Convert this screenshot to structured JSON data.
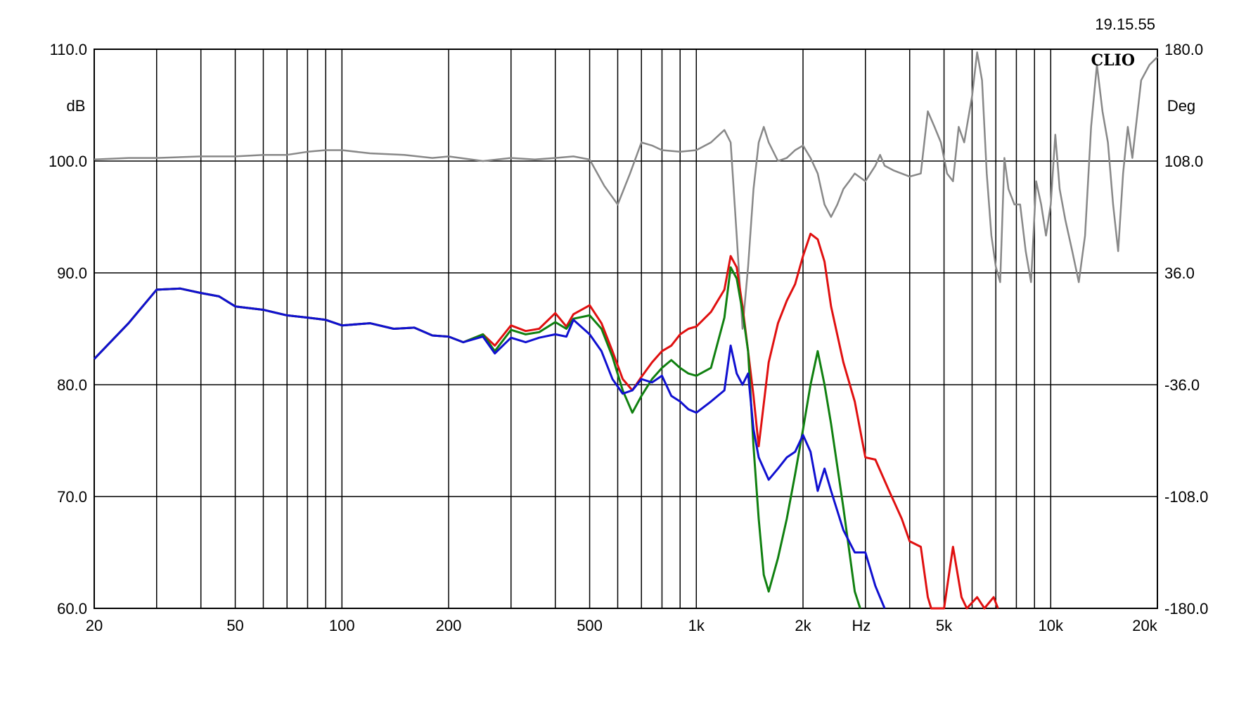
{
  "timestamp": "19.15.55",
  "logo": "CLIO",
  "colors": {
    "red": "#e01010",
    "green": "#108010",
    "blue": "#1010d0",
    "phase": "#888888",
    "grid": "#000000"
  },
  "chart_data": {
    "type": "line",
    "xscale": "log",
    "xlim": [
      20,
      20000
    ],
    "ylim": [
      60,
      110
    ],
    "y2lim": [
      -180,
      180
    ],
    "grid": true,
    "ylabel": "dB",
    "y2label": "Deg",
    "xlabel": "Hz",
    "x_ticks": [
      {
        "v": 20,
        "label": "20"
      },
      {
        "v": 50,
        "label": "50"
      },
      {
        "v": 100,
        "label": "100"
      },
      {
        "v": 200,
        "label": "200"
      },
      {
        "v": 500,
        "label": "500"
      },
      {
        "v": 1000,
        "label": "1k"
      },
      {
        "v": 2000,
        "label": "2k"
      },
      {
        "v": 5000,
        "label": "5k"
      },
      {
        "v": 10000,
        "label": "10k"
      },
      {
        "v": 20000,
        "label": "20k"
      }
    ],
    "y_ticks": [
      "60.0",
      "70.0",
      "80.0",
      "90.0",
      "100.0",
      "110.0"
    ],
    "y2_ticks": [
      "-180.0",
      "-108.0",
      "-36.0",
      "36.0",
      "108.0",
      "180.0"
    ],
    "series": [
      {
        "color": "#888888",
        "axis": "right",
        "points": [
          [
            20,
            109
          ],
          [
            25,
            110
          ],
          [
            30,
            110
          ],
          [
            40,
            111
          ],
          [
            50,
            111
          ],
          [
            60,
            112
          ],
          [
            70,
            112
          ],
          [
            80,
            114
          ],
          [
            90,
            115
          ],
          [
            100,
            115
          ],
          [
            120,
            113
          ],
          [
            150,
            112
          ],
          [
            180,
            110
          ],
          [
            200,
            111
          ],
          [
            250,
            108
          ],
          [
            300,
            110
          ],
          [
            350,
            109
          ],
          [
            400,
            110
          ],
          [
            450,
            111
          ],
          [
            500,
            109
          ],
          [
            550,
            92
          ],
          [
            600,
            80
          ],
          [
            650,
            100
          ],
          [
            700,
            120
          ],
          [
            750,
            118
          ],
          [
            800,
            115
          ],
          [
            900,
            114
          ],
          [
            1000,
            115
          ],
          [
            1100,
            120
          ],
          [
            1200,
            128
          ],
          [
            1250,
            120
          ],
          [
            1300,
            60
          ],
          [
            1350,
            0
          ],
          [
            1400,
            40
          ],
          [
            1450,
            90
          ],
          [
            1500,
            120
          ],
          [
            1550,
            130
          ],
          [
            1600,
            120
          ],
          [
            1700,
            108
          ],
          [
            1800,
            110
          ],
          [
            1900,
            115
          ],
          [
            2000,
            118
          ],
          [
            2100,
            110
          ],
          [
            2200,
            100
          ],
          [
            2300,
            80
          ],
          [
            2400,
            72
          ],
          [
            2500,
            80
          ],
          [
            2600,
            90
          ],
          [
            2700,
            95
          ],
          [
            2800,
            100
          ],
          [
            3000,
            95
          ],
          [
            3200,
            105
          ],
          [
            3300,
            112
          ],
          [
            3400,
            105
          ],
          [
            3600,
            102
          ],
          [
            4000,
            98
          ],
          [
            4300,
            100
          ],
          [
            4500,
            140
          ],
          [
            4700,
            130
          ],
          [
            4900,
            120
          ],
          [
            5100,
            100
          ],
          [
            5300,
            95
          ],
          [
            5500,
            130
          ],
          [
            5700,
            120
          ],
          [
            6000,
            150
          ],
          [
            6200,
            178
          ],
          [
            6400,
            160
          ],
          [
            6600,
            100
          ],
          [
            6800,
            60
          ],
          [
            7000,
            40
          ],
          [
            7200,
            30
          ],
          [
            7400,
            110
          ],
          [
            7600,
            90
          ],
          [
            7900,
            80
          ],
          [
            8200,
            80
          ],
          [
            8500,
            50
          ],
          [
            8800,
            30
          ],
          [
            9100,
            95
          ],
          [
            9400,
            80
          ],
          [
            9700,
            60
          ],
          [
            10000,
            80
          ],
          [
            10300,
            125
          ],
          [
            10600,
            90
          ],
          [
            11000,
            70
          ],
          [
            11500,
            50
          ],
          [
            12000,
            30
          ],
          [
            12500,
            60
          ],
          [
            13000,
            130
          ],
          [
            13500,
            170
          ],
          [
            14000,
            140
          ],
          [
            14500,
            120
          ],
          [
            15000,
            80
          ],
          [
            15500,
            50
          ],
          [
            16000,
            100
          ],
          [
            16500,
            130
          ],
          [
            17000,
            110
          ],
          [
            18000,
            160
          ],
          [
            19000,
            170
          ],
          [
            20000,
            175
          ]
        ]
      },
      {
        "color": "#e01010",
        "axis": "left",
        "points": [
          [
            20,
            82.3
          ],
          [
            25,
            85.5
          ],
          [
            30,
            88.5
          ],
          [
            35,
            88.6
          ],
          [
            40,
            88.2
          ],
          [
            45,
            87.9
          ],
          [
            50,
            87.0
          ],
          [
            60,
            86.7
          ],
          [
            70,
            86.2
          ],
          [
            80,
            86.0
          ],
          [
            90,
            85.8
          ],
          [
            100,
            85.3
          ],
          [
            120,
            85.5
          ],
          [
            140,
            85.0
          ],
          [
            160,
            85.1
          ],
          [
            180,
            84.4
          ],
          [
            200,
            84.3
          ],
          [
            220,
            83.8
          ],
          [
            250,
            84.5
          ],
          [
            270,
            83.5
          ],
          [
            300,
            85.3
          ],
          [
            330,
            84.8
          ],
          [
            360,
            85.0
          ],
          [
            400,
            86.4
          ],
          [
            430,
            85.2
          ],
          [
            450,
            86.3
          ],
          [
            500,
            87.1
          ],
          [
            540,
            85.5
          ],
          [
            580,
            83.0
          ],
          [
            620,
            80.5
          ],
          [
            660,
            79.5
          ],
          [
            700,
            80.7
          ],
          [
            750,
            82.0
          ],
          [
            800,
            83.0
          ],
          [
            850,
            83.5
          ],
          [
            900,
            84.5
          ],
          [
            950,
            85.0
          ],
          [
            1000,
            85.2
          ],
          [
            1100,
            86.5
          ],
          [
            1200,
            88.5
          ],
          [
            1250,
            91.5
          ],
          [
            1300,
            90.5
          ],
          [
            1350,
            87.0
          ],
          [
            1400,
            83.0
          ],
          [
            1450,
            79.0
          ],
          [
            1500,
            74.5
          ],
          [
            1600,
            82.0
          ],
          [
            1700,
            85.5
          ],
          [
            1800,
            87.5
          ],
          [
            1900,
            89.0
          ],
          [
            2000,
            91.5
          ],
          [
            2100,
            93.5
          ],
          [
            2200,
            93.0
          ],
          [
            2300,
            91.0
          ],
          [
            2400,
            87.0
          ],
          [
            2600,
            82.0
          ],
          [
            2800,
            78.5
          ],
          [
            3000,
            73.5
          ],
          [
            3200,
            73.3
          ],
          [
            3500,
            70.5
          ],
          [
            3800,
            68.0
          ],
          [
            4000,
            66.0
          ],
          [
            4300,
            65.5
          ],
          [
            4500,
            61.0
          ],
          [
            4600,
            59.5
          ],
          [
            5000,
            59.8
          ],
          [
            5300,
            65.5
          ],
          [
            5600,
            61.0
          ],
          [
            5800,
            59.5
          ],
          [
            6200,
            61.0
          ],
          [
            6500,
            59.0
          ],
          [
            6900,
            61.0
          ],
          [
            7100,
            60.0
          ]
        ]
      },
      {
        "color": "#108010",
        "axis": "left",
        "points": [
          [
            20,
            82.3
          ],
          [
            25,
            85.5
          ],
          [
            30,
            88.5
          ],
          [
            35,
            88.6
          ],
          [
            40,
            88.2
          ],
          [
            45,
            87.9
          ],
          [
            50,
            87.0
          ],
          [
            60,
            86.7
          ],
          [
            70,
            86.2
          ],
          [
            80,
            86.0
          ],
          [
            90,
            85.8
          ],
          [
            100,
            85.3
          ],
          [
            120,
            85.5
          ],
          [
            140,
            85.0
          ],
          [
            160,
            85.1
          ],
          [
            180,
            84.4
          ],
          [
            200,
            84.3
          ],
          [
            220,
            83.8
          ],
          [
            250,
            84.5
          ],
          [
            270,
            83.0
          ],
          [
            300,
            84.9
          ],
          [
            330,
            84.5
          ],
          [
            360,
            84.7
          ],
          [
            400,
            85.6
          ],
          [
            430,
            85.0
          ],
          [
            450,
            85.9
          ],
          [
            500,
            86.2
          ],
          [
            540,
            85.0
          ],
          [
            580,
            82.5
          ],
          [
            620,
            79.5
          ],
          [
            660,
            77.5
          ],
          [
            700,
            79.0
          ],
          [
            750,
            80.5
          ],
          [
            800,
            81.5
          ],
          [
            850,
            82.2
          ],
          [
            900,
            81.5
          ],
          [
            950,
            81.0
          ],
          [
            1000,
            80.8
          ],
          [
            1100,
            81.5
          ],
          [
            1200,
            86.0
          ],
          [
            1250,
            90.5
          ],
          [
            1300,
            89.5
          ],
          [
            1350,
            86.5
          ],
          [
            1400,
            83.0
          ],
          [
            1450,
            74.5
          ],
          [
            1500,
            68.0
          ],
          [
            1550,
            63.0
          ],
          [
            1600,
            61.5
          ],
          [
            1700,
            64.5
          ],
          [
            1800,
            68.0
          ],
          [
            1900,
            72.0
          ],
          [
            2000,
            76.0
          ],
          [
            2100,
            80.0
          ],
          [
            2200,
            83.0
          ],
          [
            2300,
            80.0
          ],
          [
            2400,
            76.5
          ],
          [
            2600,
            69.0
          ],
          [
            2800,
            61.5
          ],
          [
            2900,
            60.0
          ]
        ]
      },
      {
        "color": "#1010d0",
        "axis": "left",
        "points": [
          [
            20,
            82.3
          ],
          [
            25,
            85.5
          ],
          [
            30,
            88.5
          ],
          [
            35,
            88.6
          ],
          [
            40,
            88.2
          ],
          [
            45,
            87.9
          ],
          [
            50,
            87.0
          ],
          [
            60,
            86.7
          ],
          [
            70,
            86.2
          ],
          [
            80,
            86.0
          ],
          [
            90,
            85.8
          ],
          [
            100,
            85.3
          ],
          [
            120,
            85.5
          ],
          [
            140,
            85.0
          ],
          [
            160,
            85.1
          ],
          [
            180,
            84.4
          ],
          [
            200,
            84.3
          ],
          [
            220,
            83.8
          ],
          [
            250,
            84.3
          ],
          [
            270,
            82.8
          ],
          [
            300,
            84.2
          ],
          [
            330,
            83.8
          ],
          [
            360,
            84.2
          ],
          [
            400,
            84.5
          ],
          [
            430,
            84.3
          ],
          [
            450,
            85.8
          ],
          [
            500,
            84.5
          ],
          [
            540,
            83.0
          ],
          [
            580,
            80.5
          ],
          [
            620,
            79.2
          ],
          [
            660,
            79.5
          ],
          [
            700,
            80.5
          ],
          [
            750,
            80.2
          ],
          [
            800,
            80.8
          ],
          [
            850,
            79.0
          ],
          [
            900,
            78.5
          ],
          [
            950,
            77.8
          ],
          [
            1000,
            77.5
          ],
          [
            1100,
            78.5
          ],
          [
            1200,
            79.5
          ],
          [
            1250,
            83.5
          ],
          [
            1300,
            81.0
          ],
          [
            1350,
            80.0
          ],
          [
            1400,
            81.0
          ],
          [
            1450,
            76.0
          ],
          [
            1500,
            73.5
          ],
          [
            1600,
            71.5
          ],
          [
            1700,
            72.5
          ],
          [
            1800,
            73.5
          ],
          [
            1900,
            74.0
          ],
          [
            2000,
            75.5
          ],
          [
            2100,
            74.0
          ],
          [
            2200,
            70.5
          ],
          [
            2300,
            72.5
          ],
          [
            2400,
            70.5
          ],
          [
            2600,
            67.0
          ],
          [
            2800,
            65.0
          ],
          [
            3000,
            65.0
          ],
          [
            3200,
            62.0
          ],
          [
            3400,
            60.0
          ]
        ]
      }
    ]
  }
}
